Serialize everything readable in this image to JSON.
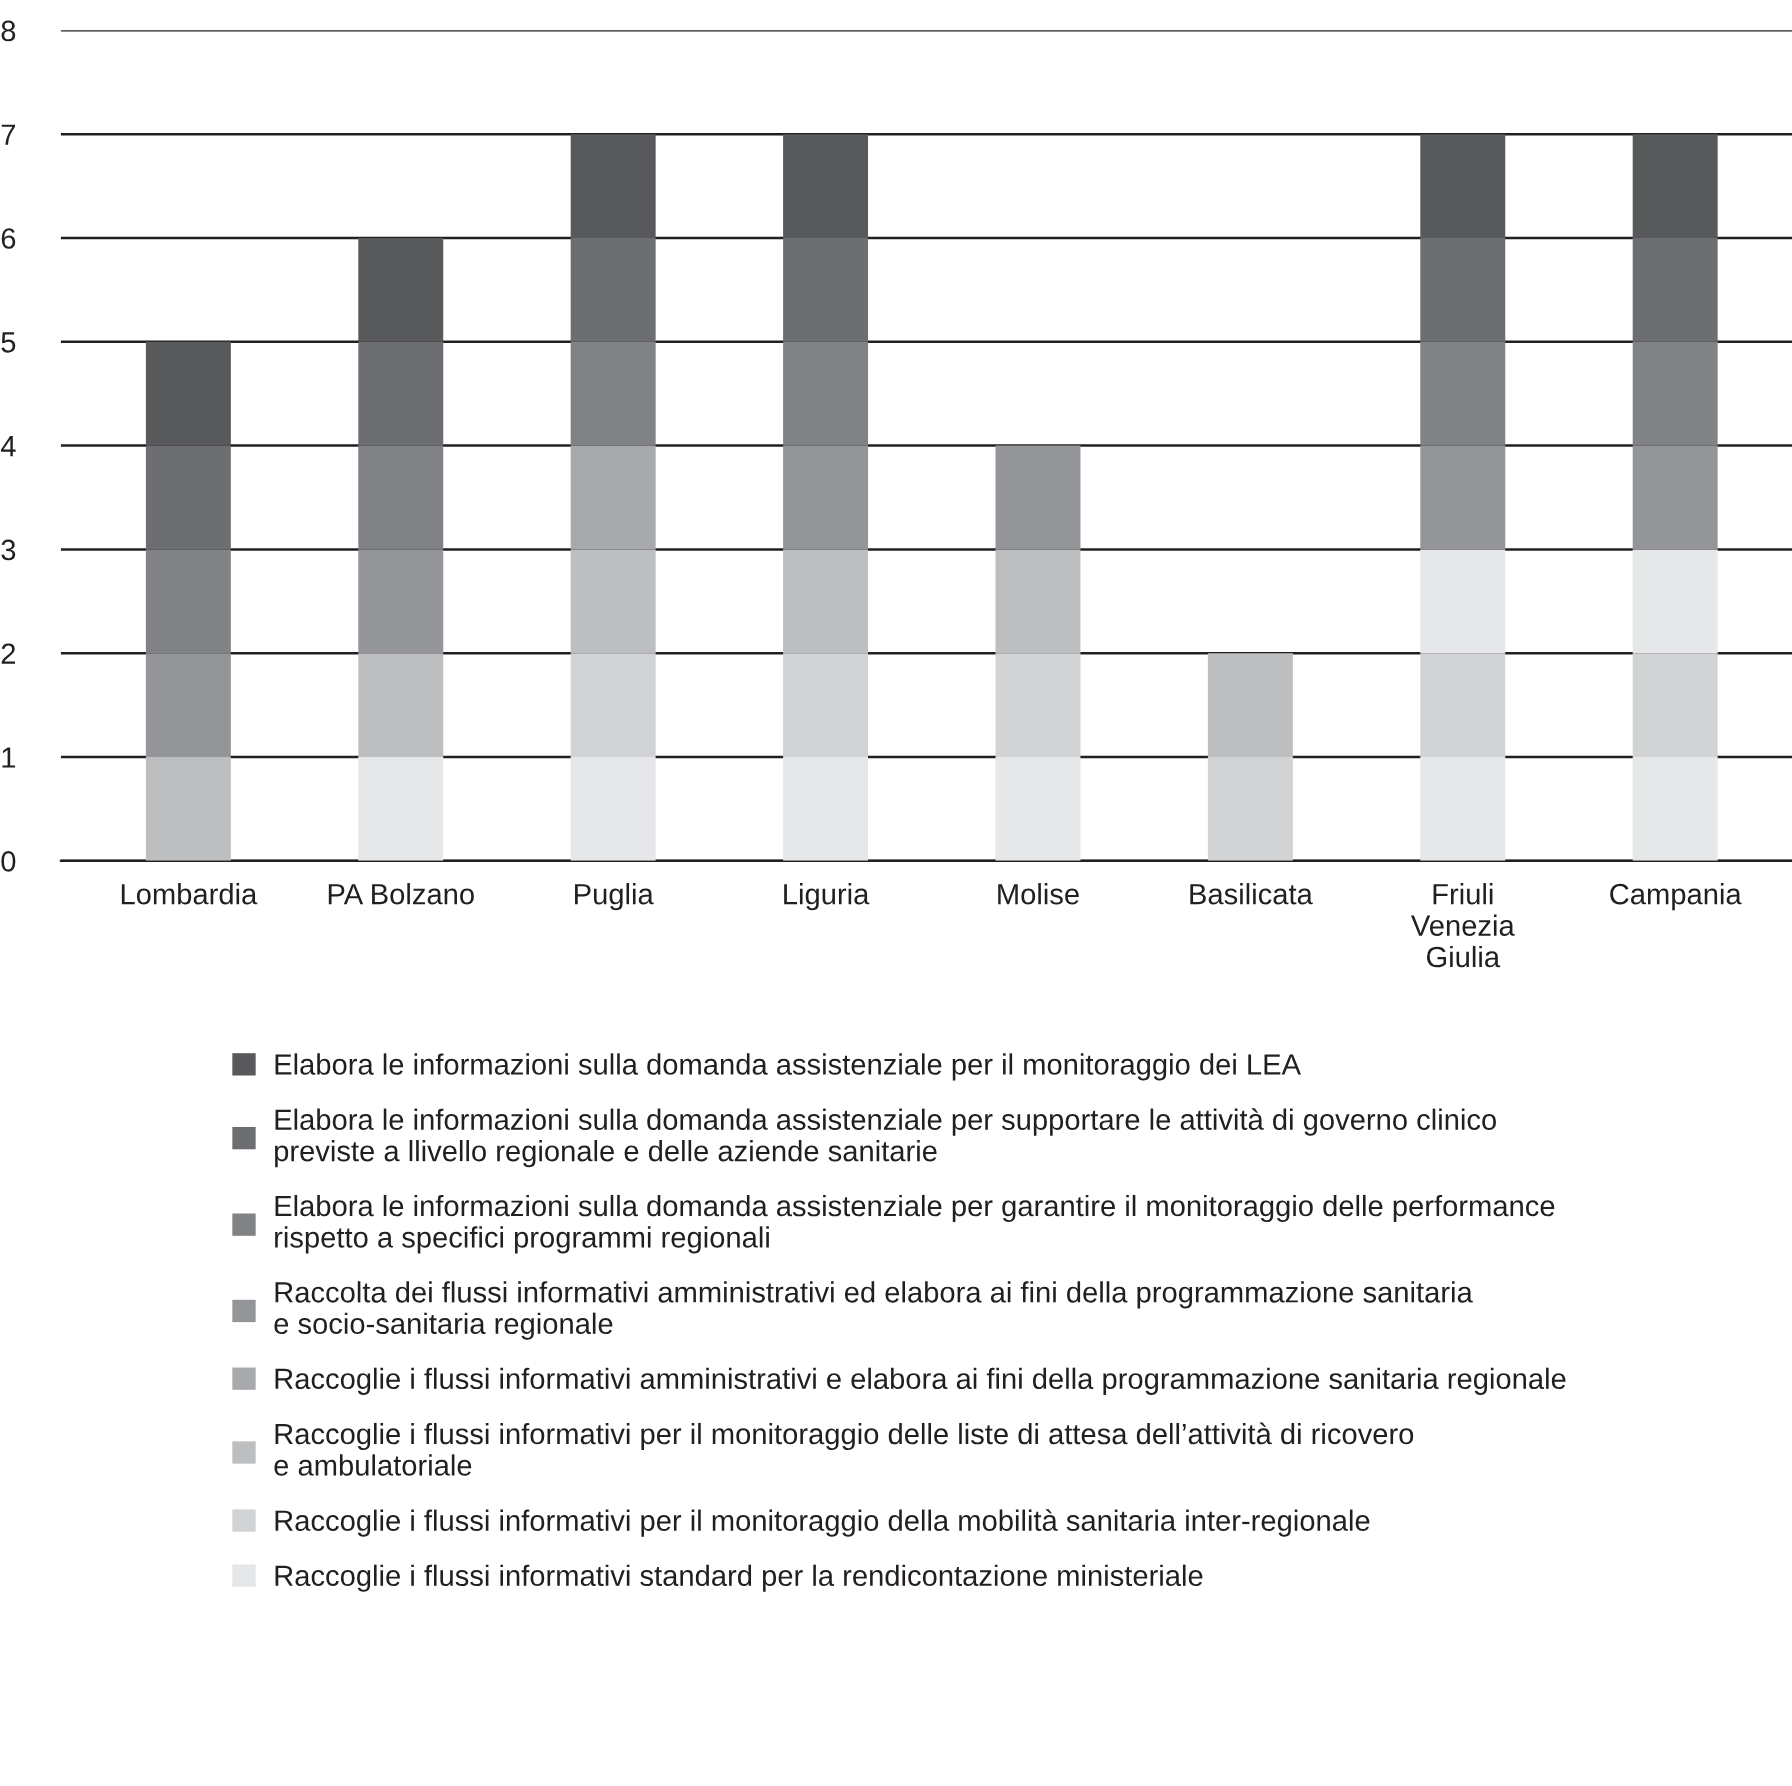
{
  "chart_data": {
    "type": "bar",
    "stacked": true,
    "categories": [
      "Lombardia",
      "PA Bolzano",
      "Puglia",
      "Liguria",
      "Molise",
      "Basilicata",
      "Friuli\nVenezia\nGiulia",
      "Campania"
    ],
    "ylim": [
      0,
      8
    ],
    "yticks": [
      0,
      1,
      2,
      3,
      4,
      5,
      6,
      7,
      8
    ],
    "grid": "y",
    "legend": "bottom",
    "series": [
      {
        "name": "Raccoglie i flussi informativi standard per la rendicontazione ministeriale",
        "color": "#e6e7e8",
        "values": [
          null,
          1,
          1,
          1,
          1,
          null,
          1,
          1
        ]
      },
      {
        "name": "Raccoglie i flussi informativi per il monitoraggio della mobilità sanitaria inter-regionale",
        "color": "#d1d3d4",
        "values": [
          null,
          null,
          1,
          1,
          1,
          1,
          1,
          1
        ]
      },
      {
        "name": "Raccoglie i flussi informativi per il monitoraggio delle liste di attesa dell’attività di ricovero\ne ambulatoriale",
        "color": "#bcbec0",
        "colors": [
          "#bcbec0",
          "#bcbec0",
          "#bcbec0",
          "#bcbec0",
          "#bcbec0",
          "#bcbec0",
          "#e6e7e8",
          "#e6e7e8"
        ],
        "values": [
          1,
          1,
          1,
          1,
          1,
          1,
          1,
          1
        ]
      },
      {
        "name": "Raccoglie i flussi informativi amministrativi e elabora ai fini della programmazione sanitaria regionale",
        "color": "#a7a9ac",
        "values": [
          null,
          null,
          1,
          null,
          null,
          null,
          null,
          null
        ]
      },
      {
        "name": "Raccolta dei flussi informativi amministrativi ed elabora ai fini della programmazione sanitaria\ne socio-sanitaria regionale",
        "color": "#939598",
        "values": [
          1,
          1,
          null,
          1,
          1,
          null,
          1,
          1
        ]
      },
      {
        "name": "Elabora le informazioni sulla domanda assistenziale per garantire il monitoraggio delle performance\nrispetto a specifici programmi regionali",
        "color": "#808285",
        "values": [
          1,
          1,
          1,
          1,
          null,
          null,
          1,
          1
        ]
      },
      {
        "name": "Elabora le informazioni sulla domanda assistenziale per supportare le attività di governo clinico\npreviste a llivello regionale e delle aziende sanitarie",
        "color": "#6d6e71",
        "values": [
          1,
          1,
          1,
          1,
          null,
          null,
          1,
          1
        ]
      },
      {
        "name": "Elabora le informazioni sulla domanda assistenziale per il monitoraggio dei LEA",
        "color": "#58595b",
        "values": [
          1,
          1,
          1,
          1,
          null,
          null,
          1,
          1
        ]
      }
    ]
  }
}
